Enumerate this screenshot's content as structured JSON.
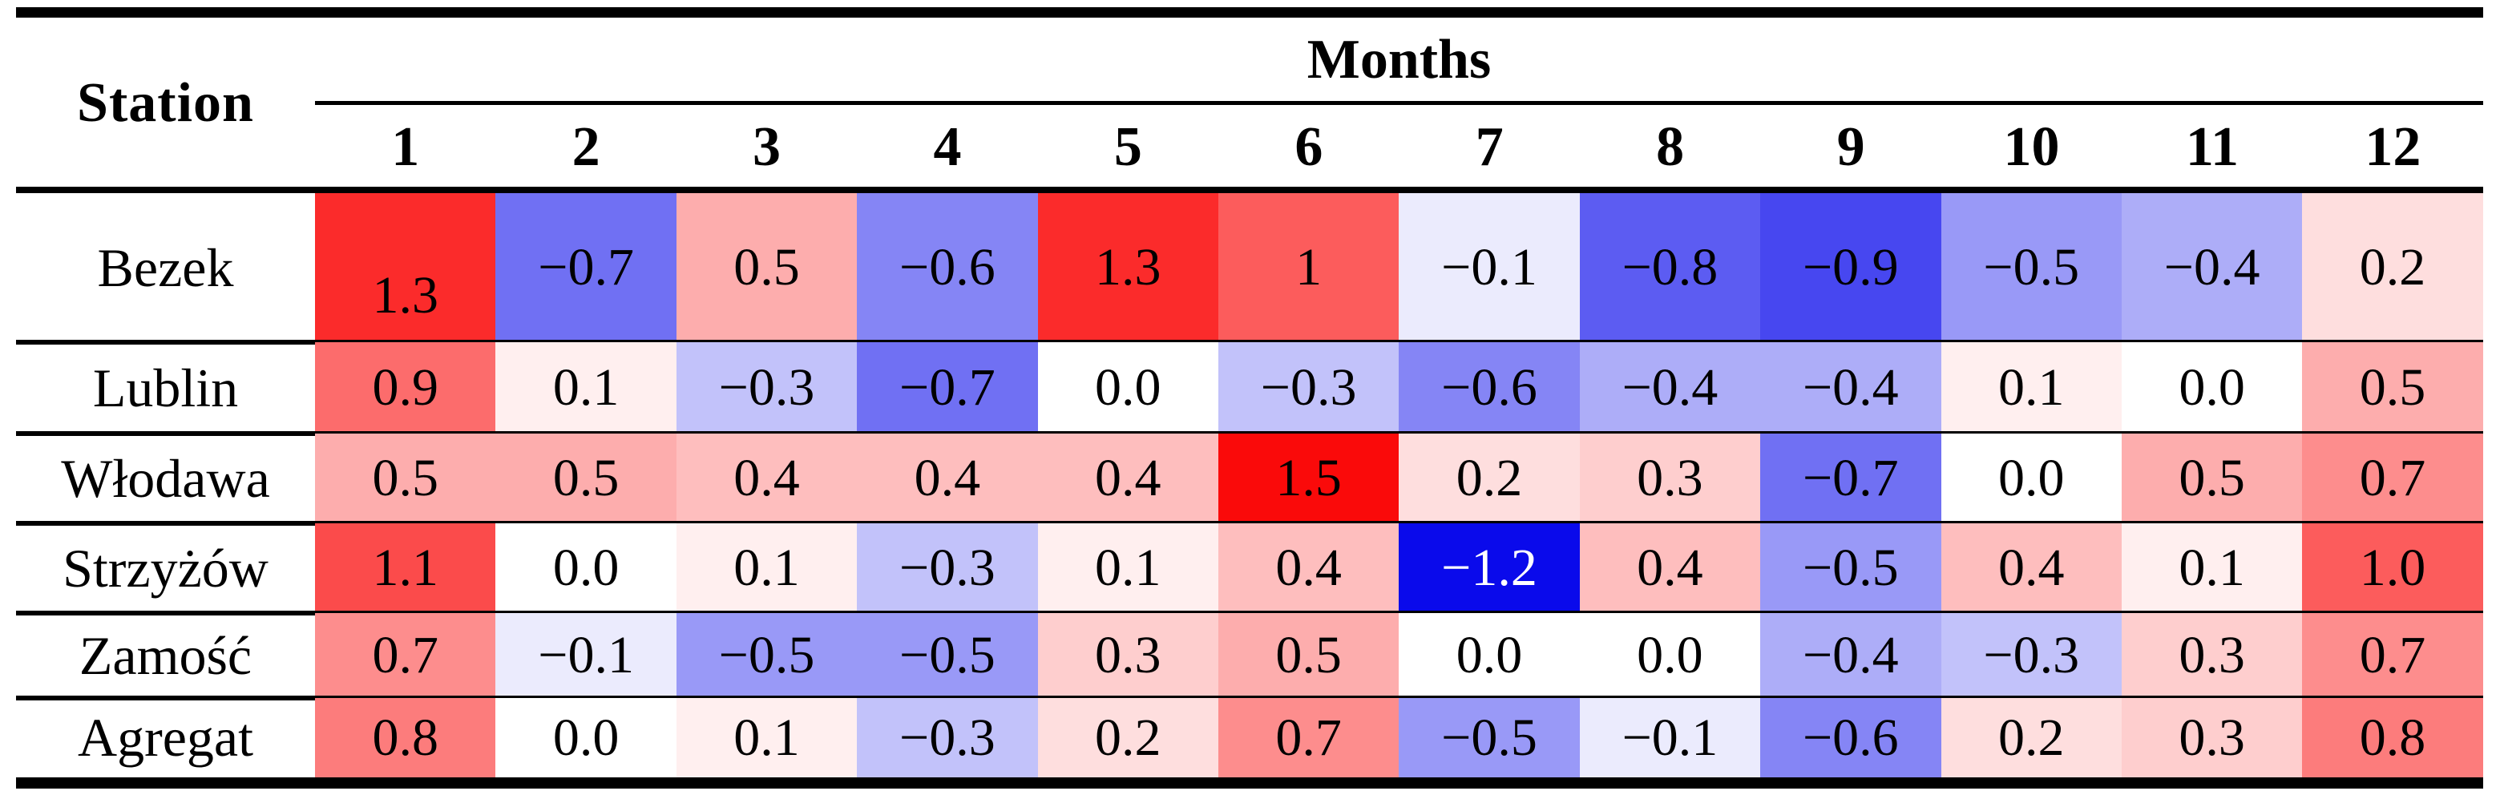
{
  "table": {
    "station_header": "Station",
    "months_header": "Months",
    "month_columns": [
      "1",
      "2",
      "3",
      "4",
      "5",
      "6",
      "7",
      "8",
      "9",
      "10",
      "11",
      "12"
    ],
    "rows": [
      {
        "station": "Bezek",
        "labels": [
          "1.3",
          "−0.7",
          "0.5",
          "−0.6",
          "1.3",
          "1",
          "−0.1",
          "−0.8",
          "−0.9",
          "−0.5",
          "−0.4",
          "0.2"
        ],
        "values": [
          1.3,
          -0.7,
          0.5,
          -0.6,
          1.3,
          1.0,
          -0.1,
          -0.8,
          -0.9,
          -0.5,
          -0.4,
          0.2
        ]
      },
      {
        "station": "Lublin",
        "labels": [
          "0.9",
          "0.1",
          "−0.3",
          "−0.7",
          "0.0",
          "−0.3",
          "−0.6",
          "−0.4",
          "−0.4",
          "0.1",
          "0.0",
          "0.5"
        ],
        "values": [
          0.9,
          0.1,
          -0.3,
          -0.7,
          0.0,
          -0.3,
          -0.6,
          -0.4,
          -0.4,
          0.1,
          0.0,
          0.5
        ]
      },
      {
        "station": "Włodawa",
        "labels": [
          "0.5",
          "0.5",
          "0.4",
          "0.4",
          "0.4",
          "1.5",
          "0.2",
          "0.3",
          "−0.7",
          "0.0",
          "0.5",
          "0.7"
        ],
        "values": [
          0.5,
          0.5,
          0.4,
          0.4,
          0.4,
          1.5,
          0.2,
          0.3,
          -0.7,
          0.0,
          0.5,
          0.7
        ]
      },
      {
        "station": "Strzyżów",
        "labels": [
          "1.1",
          "0.0",
          "0.1",
          "−0.3",
          "0.1",
          "0.4",
          "−1.2",
          "0.4",
          "−0.5",
          "0.4",
          "0.1",
          "1.0"
        ],
        "values": [
          1.1,
          0.0,
          0.1,
          -0.3,
          0.1,
          0.4,
          -1.2,
          0.4,
          -0.5,
          0.4,
          0.1,
          1.0
        ]
      },
      {
        "station": "Zamość",
        "labels": [
          "0.7",
          "−0.1",
          "−0.5",
          "−0.5",
          "0.3",
          "0.5",
          "0.0",
          "0.0",
          "−0.4",
          "−0.3",
          "0.3",
          "0.7"
        ],
        "values": [
          0.7,
          -0.1,
          -0.5,
          -0.5,
          0.3,
          0.5,
          0.0,
          0.0,
          -0.4,
          -0.3,
          0.3,
          0.7
        ]
      },
      {
        "station": "Agregat",
        "labels": [
          "0.8",
          "0.0",
          "0.1",
          "−0.3",
          "0.2",
          "0.7",
          "−0.5",
          "−0.1",
          "−0.6",
          "0.2",
          "0.3",
          "0.8"
        ],
        "values": [
          0.8,
          0.0,
          0.1,
          -0.3,
          0.2,
          0.7,
          -0.5,
          -0.1,
          -0.6,
          0.2,
          0.3,
          0.8
        ]
      }
    ],
    "colors": {
      "positive_max_color": "#fa0a0a",
      "negative_max_color": "#0a0aeb",
      "zero_color": "#ffffff",
      "positive_scale_max": 1.5,
      "negative_scale_max": 1.2,
      "white_text_threshold": -1.1
    }
  },
  "chart_data": {
    "type": "heatmap",
    "title": "",
    "xlabel": "Months",
    "ylabel": "Station",
    "columns": [
      "1",
      "2",
      "3",
      "4",
      "5",
      "6",
      "7",
      "8",
      "9",
      "10",
      "11",
      "12"
    ],
    "rows": [
      "Bezek",
      "Lublin",
      "Włodawa",
      "Strzyżów",
      "Zamość",
      "Agregat"
    ],
    "values": [
      [
        1.3,
        -0.7,
        0.5,
        -0.6,
        1.3,
        1.0,
        -0.1,
        -0.8,
        -0.9,
        -0.5,
        -0.4,
        0.2
      ],
      [
        0.9,
        0.1,
        -0.3,
        -0.7,
        0.0,
        -0.3,
        -0.6,
        -0.4,
        -0.4,
        0.1,
        0.0,
        0.5
      ],
      [
        0.5,
        0.5,
        0.4,
        0.4,
        0.4,
        1.5,
        0.2,
        0.3,
        -0.7,
        0.0,
        0.5,
        0.7
      ],
      [
        1.1,
        0.0,
        0.1,
        -0.3,
        0.1,
        0.4,
        -1.2,
        0.4,
        -0.5,
        0.4,
        0.1,
        1.0
      ],
      [
        0.7,
        -0.1,
        -0.5,
        -0.5,
        0.3,
        0.5,
        0.0,
        0.0,
        -0.4,
        -0.3,
        0.3,
        0.7
      ],
      [
        0.8,
        0.0,
        0.1,
        -0.3,
        0.2,
        0.7,
        -0.5,
        -0.1,
        -0.6,
        0.2,
        0.3,
        0.8
      ]
    ],
    "value_range": [
      -1.2,
      1.5
    ],
    "colormap": "blue-white-red diverging",
    "legend": "none",
    "grid": "horizontal rules only"
  }
}
